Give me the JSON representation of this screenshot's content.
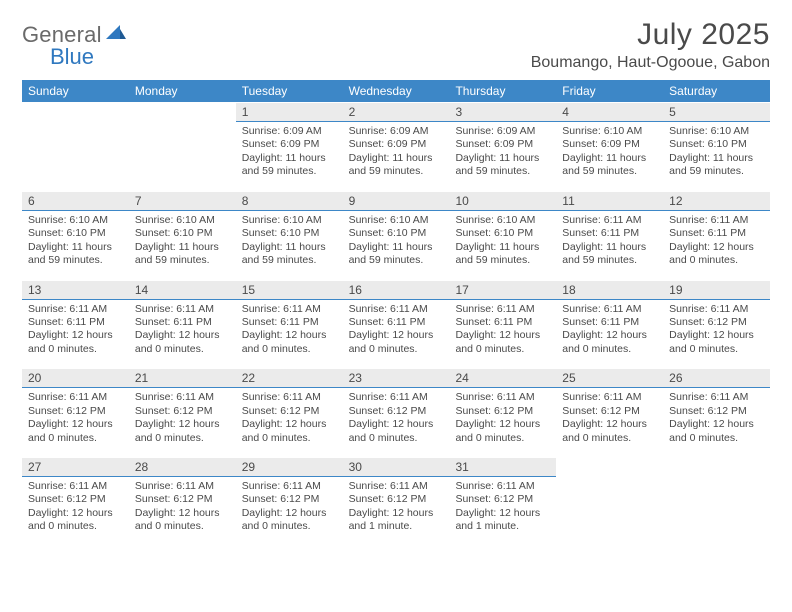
{
  "logo": {
    "text1": "General",
    "text2": "Blue"
  },
  "title": "July 2025",
  "location": "Boumango, Haut-Ogooue, Gabon",
  "colors": {
    "header_bg": "#3d87c7",
    "header_text": "#ffffff",
    "daynum_bg": "#ebebeb",
    "divider": "#3d87c7",
    "text": "#4a4a4a",
    "logo_gray": "#6a6a6a",
    "logo_blue": "#2f78bf"
  },
  "day_headers": [
    "Sunday",
    "Monday",
    "Tuesday",
    "Wednesday",
    "Thursday",
    "Friday",
    "Saturday"
  ],
  "weeks": [
    [
      {
        "num": "",
        "sunrise": "",
        "sunset": "",
        "daylight1": "",
        "daylight2": ""
      },
      {
        "num": "",
        "sunrise": "",
        "sunset": "",
        "daylight1": "",
        "daylight2": ""
      },
      {
        "num": "1",
        "sunrise": "Sunrise: 6:09 AM",
        "sunset": "Sunset: 6:09 PM",
        "daylight1": "Daylight: 11 hours",
        "daylight2": "and 59 minutes."
      },
      {
        "num": "2",
        "sunrise": "Sunrise: 6:09 AM",
        "sunset": "Sunset: 6:09 PM",
        "daylight1": "Daylight: 11 hours",
        "daylight2": "and 59 minutes."
      },
      {
        "num": "3",
        "sunrise": "Sunrise: 6:09 AM",
        "sunset": "Sunset: 6:09 PM",
        "daylight1": "Daylight: 11 hours",
        "daylight2": "and 59 minutes."
      },
      {
        "num": "4",
        "sunrise": "Sunrise: 6:10 AM",
        "sunset": "Sunset: 6:09 PM",
        "daylight1": "Daylight: 11 hours",
        "daylight2": "and 59 minutes."
      },
      {
        "num": "5",
        "sunrise": "Sunrise: 6:10 AM",
        "sunset": "Sunset: 6:10 PM",
        "daylight1": "Daylight: 11 hours",
        "daylight2": "and 59 minutes."
      }
    ],
    [
      {
        "num": "6",
        "sunrise": "Sunrise: 6:10 AM",
        "sunset": "Sunset: 6:10 PM",
        "daylight1": "Daylight: 11 hours",
        "daylight2": "and 59 minutes."
      },
      {
        "num": "7",
        "sunrise": "Sunrise: 6:10 AM",
        "sunset": "Sunset: 6:10 PM",
        "daylight1": "Daylight: 11 hours",
        "daylight2": "and 59 minutes."
      },
      {
        "num": "8",
        "sunrise": "Sunrise: 6:10 AM",
        "sunset": "Sunset: 6:10 PM",
        "daylight1": "Daylight: 11 hours",
        "daylight2": "and 59 minutes."
      },
      {
        "num": "9",
        "sunrise": "Sunrise: 6:10 AM",
        "sunset": "Sunset: 6:10 PM",
        "daylight1": "Daylight: 11 hours",
        "daylight2": "and 59 minutes."
      },
      {
        "num": "10",
        "sunrise": "Sunrise: 6:10 AM",
        "sunset": "Sunset: 6:10 PM",
        "daylight1": "Daylight: 11 hours",
        "daylight2": "and 59 minutes."
      },
      {
        "num": "11",
        "sunrise": "Sunrise: 6:11 AM",
        "sunset": "Sunset: 6:11 PM",
        "daylight1": "Daylight: 11 hours",
        "daylight2": "and 59 minutes."
      },
      {
        "num": "12",
        "sunrise": "Sunrise: 6:11 AM",
        "sunset": "Sunset: 6:11 PM",
        "daylight1": "Daylight: 12 hours",
        "daylight2": "and 0 minutes."
      }
    ],
    [
      {
        "num": "13",
        "sunrise": "Sunrise: 6:11 AM",
        "sunset": "Sunset: 6:11 PM",
        "daylight1": "Daylight: 12 hours",
        "daylight2": "and 0 minutes."
      },
      {
        "num": "14",
        "sunrise": "Sunrise: 6:11 AM",
        "sunset": "Sunset: 6:11 PM",
        "daylight1": "Daylight: 12 hours",
        "daylight2": "and 0 minutes."
      },
      {
        "num": "15",
        "sunrise": "Sunrise: 6:11 AM",
        "sunset": "Sunset: 6:11 PM",
        "daylight1": "Daylight: 12 hours",
        "daylight2": "and 0 minutes."
      },
      {
        "num": "16",
        "sunrise": "Sunrise: 6:11 AM",
        "sunset": "Sunset: 6:11 PM",
        "daylight1": "Daylight: 12 hours",
        "daylight2": "and 0 minutes."
      },
      {
        "num": "17",
        "sunrise": "Sunrise: 6:11 AM",
        "sunset": "Sunset: 6:11 PM",
        "daylight1": "Daylight: 12 hours",
        "daylight2": "and 0 minutes."
      },
      {
        "num": "18",
        "sunrise": "Sunrise: 6:11 AM",
        "sunset": "Sunset: 6:11 PM",
        "daylight1": "Daylight: 12 hours",
        "daylight2": "and 0 minutes."
      },
      {
        "num": "19",
        "sunrise": "Sunrise: 6:11 AM",
        "sunset": "Sunset: 6:12 PM",
        "daylight1": "Daylight: 12 hours",
        "daylight2": "and 0 minutes."
      }
    ],
    [
      {
        "num": "20",
        "sunrise": "Sunrise: 6:11 AM",
        "sunset": "Sunset: 6:12 PM",
        "daylight1": "Daylight: 12 hours",
        "daylight2": "and 0 minutes."
      },
      {
        "num": "21",
        "sunrise": "Sunrise: 6:11 AM",
        "sunset": "Sunset: 6:12 PM",
        "daylight1": "Daylight: 12 hours",
        "daylight2": "and 0 minutes."
      },
      {
        "num": "22",
        "sunrise": "Sunrise: 6:11 AM",
        "sunset": "Sunset: 6:12 PM",
        "daylight1": "Daylight: 12 hours",
        "daylight2": "and 0 minutes."
      },
      {
        "num": "23",
        "sunrise": "Sunrise: 6:11 AM",
        "sunset": "Sunset: 6:12 PM",
        "daylight1": "Daylight: 12 hours",
        "daylight2": "and 0 minutes."
      },
      {
        "num": "24",
        "sunrise": "Sunrise: 6:11 AM",
        "sunset": "Sunset: 6:12 PM",
        "daylight1": "Daylight: 12 hours",
        "daylight2": "and 0 minutes."
      },
      {
        "num": "25",
        "sunrise": "Sunrise: 6:11 AM",
        "sunset": "Sunset: 6:12 PM",
        "daylight1": "Daylight: 12 hours",
        "daylight2": "and 0 minutes."
      },
      {
        "num": "26",
        "sunrise": "Sunrise: 6:11 AM",
        "sunset": "Sunset: 6:12 PM",
        "daylight1": "Daylight: 12 hours",
        "daylight2": "and 0 minutes."
      }
    ],
    [
      {
        "num": "27",
        "sunrise": "Sunrise: 6:11 AM",
        "sunset": "Sunset: 6:12 PM",
        "daylight1": "Daylight: 12 hours",
        "daylight2": "and 0 minutes."
      },
      {
        "num": "28",
        "sunrise": "Sunrise: 6:11 AM",
        "sunset": "Sunset: 6:12 PM",
        "daylight1": "Daylight: 12 hours",
        "daylight2": "and 0 minutes."
      },
      {
        "num": "29",
        "sunrise": "Sunrise: 6:11 AM",
        "sunset": "Sunset: 6:12 PM",
        "daylight1": "Daylight: 12 hours",
        "daylight2": "and 0 minutes."
      },
      {
        "num": "30",
        "sunrise": "Sunrise: 6:11 AM",
        "sunset": "Sunset: 6:12 PM",
        "daylight1": "Daylight: 12 hours",
        "daylight2": "and 1 minute."
      },
      {
        "num": "31",
        "sunrise": "Sunrise: 6:11 AM",
        "sunset": "Sunset: 6:12 PM",
        "daylight1": "Daylight: 12 hours",
        "daylight2": "and 1 minute."
      },
      {
        "num": "",
        "sunrise": "",
        "sunset": "",
        "daylight1": "",
        "daylight2": ""
      },
      {
        "num": "",
        "sunrise": "",
        "sunset": "",
        "daylight1": "",
        "daylight2": ""
      }
    ]
  ]
}
